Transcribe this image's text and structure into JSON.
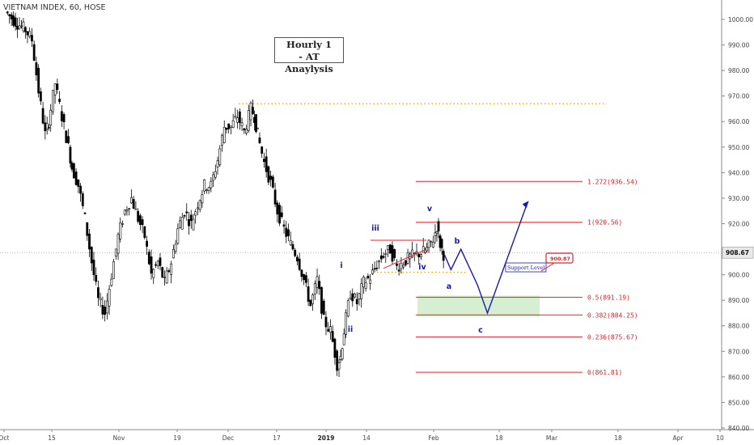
{
  "header": {
    "symbol": "VIETNAM INDEX, 60, HOSE"
  },
  "annotation_box": {
    "line1": "Hourly 1",
    "line2": "- AT Anaylysis"
  },
  "chart_data": {
    "type": "candlestick",
    "price_axis": {
      "ticks": [
        "1000.00",
        "990.00",
        "980.00",
        "970.00",
        "960.00",
        "950.00",
        "940.00",
        "930.00",
        "920.00",
        "910.00",
        "900.00",
        "890.00",
        "880.00",
        "870.00",
        "860.00",
        "850.00",
        "840.00"
      ],
      "current_price": "908.67",
      "ylim": [
        837,
        1004
      ]
    },
    "time_axis": {
      "labels": [
        "Oct",
        "15",
        "Nov",
        "19",
        "Dec",
        "17",
        "2019",
        "14",
        "Feb",
        "18",
        "Mar",
        "18",
        "Apr",
        "10"
      ],
      "bold_labels": [
        "2019"
      ]
    },
    "price_path": [
      [
        0,
        1003
      ],
      [
        3,
        999
      ],
      [
        6,
        996
      ],
      [
        8,
        992
      ],
      [
        10,
        972
      ],
      [
        12,
        955
      ],
      [
        13,
        960
      ],
      [
        15,
        975
      ],
      [
        17,
        962
      ],
      [
        19,
        950
      ],
      [
        20,
        942
      ],
      [
        22,
        935
      ],
      [
        24,
        922
      ],
      [
        26,
        905
      ],
      [
        28,
        890
      ],
      [
        30,
        885
      ],
      [
        32,
        900
      ],
      [
        34,
        915
      ],
      [
        36,
        925
      ],
      [
        38,
        930
      ],
      [
        40,
        922
      ],
      [
        42,
        915
      ],
      [
        44,
        900
      ],
      [
        46,
        905
      ],
      [
        48,
        897
      ],
      [
        50,
        905
      ],
      [
        52,
        918
      ],
      [
        54,
        925
      ],
      [
        56,
        920
      ],
      [
        58,
        928
      ],
      [
        60,
        935
      ],
      [
        62,
        935
      ],
      [
        64,
        945
      ],
      [
        66,
        958
      ],
      [
        68,
        958
      ],
      [
        70,
        962
      ],
      [
        72,
        956
      ],
      [
        74,
        965
      ],
      [
        75,
        962
      ],
      [
        76,
        955
      ],
      [
        78,
        944
      ],
      [
        80,
        936
      ],
      [
        82,
        925
      ],
      [
        84,
        918
      ],
      [
        86,
        912
      ],
      [
        88,
        907
      ],
      [
        90,
        898
      ],
      [
        92,
        888
      ],
      [
        94,
        898
      ],
      [
        96,
        882
      ],
      [
        98,
        878
      ],
      [
        100,
        865
      ],
      [
        101,
        868
      ],
      [
        102,
        878
      ],
      [
        104,
        893
      ],
      [
        106,
        889
      ],
      [
        108,
        897
      ],
      [
        110,
        899
      ],
      [
        112,
        904
      ],
      [
        114,
        908
      ],
      [
        116,
        910
      ],
      [
        118,
        903
      ],
      [
        120,
        905
      ],
      [
        122,
        907
      ],
      [
        124,
        908
      ],
      [
        126,
        909
      ],
      [
        127,
        910
      ],
      [
        129,
        914
      ],
      [
        130,
        919
      ],
      [
        131,
        912
      ],
      [
        132,
        908
      ]
    ],
    "elliott_labels": {
      "i": "i",
      "ii": "ii",
      "iii": "iii",
      "iv": "iv",
      "v": "v",
      "a": "a",
      "b": "b",
      "c": "c"
    },
    "projection_path": [
      [
        132,
        908
      ],
      [
        134,
        902
      ],
      [
        137,
        910
      ],
      [
        142,
        896
      ],
      [
        145,
        885
      ],
      [
        157,
        928
      ]
    ],
    "fibonacci_levels": [
      {
        "ratio": "1.272",
        "price": 936.54,
        "label": "1.272(936.54)"
      },
      {
        "ratio": "1",
        "price": 920.56,
        "label": "1(920.56)"
      },
      {
        "ratio": "0.5",
        "price": 891.19,
        "label": "0.5(891.19)"
      },
      {
        "ratio": "0.382",
        "price": 884.25,
        "label": "0.382(884.25)"
      },
      {
        "ratio": "0.236",
        "price": 875.67,
        "label": "0.236(875.67)"
      },
      {
        "ratio": "0",
        "price": 861.81,
        "label": "0(861.81)"
      }
    ],
    "support": {
      "label": "Support Level",
      "price": 900.87,
      "price_label": "900.87"
    },
    "resistance_dotted": 967,
    "colors": {
      "fib": "#e8202a",
      "wave": "#1a1aa8",
      "dotted": "#ff9800",
      "support_zone": "#cfecc8",
      "candle": "#000000"
    }
  }
}
